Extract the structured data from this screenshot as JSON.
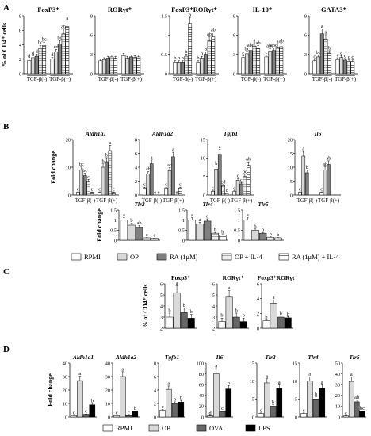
{
  "panel_labels": {
    "A": "A",
    "B": "B",
    "C": "C",
    "D": "D"
  },
  "colors": {
    "RPMI": "#ffffff",
    "OP": "#d9d9d9",
    "RA": "#7f7f7f",
    "OP_IL4": "#ffffff",
    "RA_IL4": "#ffffff",
    "OVA": "#666666",
    "LPS": "#000000"
  },
  "legend1": [
    "RPMI",
    "OP",
    "RA (1μM)",
    "OP + IL-4",
    "RA (1μM) + IL-4"
  ],
  "legend2": [
    "RPMI",
    "OP",
    "OVA",
    "LPS"
  ],
  "chart_data": [
    {
      "id": "A1",
      "type": "bar",
      "title": "FoxP3⁺",
      "ylabel": "% of CD4⁺ cells",
      "ylim": [
        0,
        8
      ],
      "yticks": [
        0,
        2,
        4,
        6,
        8
      ],
      "groups": [
        "TGF-β(-)",
        "TGF-β(+)"
      ],
      "series": [
        "RPMI",
        "OP",
        "RA",
        "OP_IL4",
        "RA_IL4"
      ],
      "values": [
        [
          1.8,
          2.2,
          2.4,
          3.5,
          3.9
        ],
        [
          2.0,
          3.0,
          4.1,
          5.5,
          6.5
        ]
      ],
      "letters": [
        [
          "d",
          "d",
          "d",
          "bc",
          "bc"
        ],
        [
          "d",
          "cd",
          "bc",
          "ab",
          "a"
        ]
      ]
    },
    {
      "id": "A2",
      "type": "bar",
      "title": "RORγt⁺",
      "ylim": [
        0,
        9
      ],
      "yticks": [
        0,
        3,
        6,
        9
      ],
      "groups": [
        "TGF-β(-)",
        "TGF-β(+)"
      ],
      "series": [
        "RPMI",
        "OP",
        "RA",
        "OP_IL4",
        "RA_IL4"
      ],
      "values": [
        [
          2.0,
          2.2,
          2.4,
          2.6,
          2.4
        ],
        [
          2.8,
          2.4,
          2.6,
          2.5,
          2.6
        ]
      ],
      "letters": [
        [
          "",
          "",
          "",
          "",
          ""
        ],
        [
          "",
          "",
          "",
          "",
          ""
        ]
      ]
    },
    {
      "id": "A3",
      "type": "bar",
      "title": "FoxP3⁺RORγt⁺",
      "ylim": [
        0,
        1.5
      ],
      "yticks": [
        0,
        0.5,
        1.0,
        1.5
      ],
      "groups": [
        "TGF-β(-)",
        "TGF-β(+)"
      ],
      "series": [
        "RPMI",
        "OP",
        "RA",
        "OP_IL4",
        "RA_IL4"
      ],
      "values": [
        [
          0.3,
          0.3,
          0.3,
          0.45,
          1.3
        ],
        [
          0.3,
          0.4,
          0.5,
          0.85,
          0.95
        ]
      ],
      "letters": [
        [
          "b",
          "b",
          "b",
          "b",
          "a"
        ],
        [
          "b",
          "b",
          "b",
          "ab",
          "ab"
        ]
      ]
    },
    {
      "id": "A4",
      "type": "bar",
      "title": "IL-10⁺",
      "ylim": [
        0,
        9
      ],
      "yticks": [
        0,
        3,
        6,
        9
      ],
      "groups": [
        "TGF-β(-)",
        "TGF-β(+)"
      ],
      "series": [
        "RPMI",
        "OP",
        "RA",
        "OP_IL4",
        "RA_IL4"
      ],
      "values": [
        [
          2.5,
          3.1,
          3.6,
          4.3,
          3.9
        ],
        [
          2.6,
          3.5,
          3.6,
          4.1,
          4.2
        ]
      ],
      "letters": [
        [
          "c",
          "bc",
          "abc",
          "a",
          "ab"
        ],
        [
          "c",
          "abc",
          "abc",
          "a",
          "ab"
        ]
      ]
    },
    {
      "id": "A5",
      "type": "bar",
      "title": "GATA3⁺",
      "ylim": [
        0,
        9
      ],
      "yticks": [
        0,
        3,
        6,
        9
      ],
      "groups": [
        "TGF-β(-)",
        "TGF-β(+)"
      ],
      "series": [
        "RPMI",
        "OP",
        "RA",
        "OP_IL4",
        "RA_IL4"
      ],
      "values": [
        [
          2.0,
          2.6,
          6.2,
          5.4,
          3.2
        ],
        [
          2.2,
          2.5,
          2.1,
          1.9,
          1.9
        ]
      ],
      "letters": [
        [
          "c",
          "bc",
          "a",
          "a",
          "b"
        ],
        [
          "c",
          "c",
          "c",
          "c",
          "c"
        ]
      ]
    },
    {
      "id": "B1",
      "type": "bar",
      "title": "Aldh1a1",
      "ylabel": "Fold change",
      "ylim": [
        0,
        20
      ],
      "yticks": [
        0,
        10,
        20
      ],
      "groups": [
        "TGF-β(-)",
        "TGF-β(+)"
      ],
      "series": [
        "RPMI",
        "OP",
        "RA",
        "OP_IL4",
        "RA_IL4"
      ],
      "values": [
        [
          1,
          9,
          7,
          5,
          1
        ],
        [
          1,
          10,
          12,
          16,
          1
        ]
      ],
      "letters": [
        [
          "c",
          "bc",
          "bc",
          "c",
          "c"
        ],
        [
          "c",
          "b",
          "b",
          "a",
          "c"
        ]
      ]
    },
    {
      "id": "B2",
      "type": "bar",
      "title": "Aldh1a2",
      "ylim": [
        0,
        8
      ],
      "yticks": [
        0,
        2,
        4,
        6,
        8
      ],
      "groups": [
        "TGF-β(-)",
        "TGF-β(+)"
      ],
      "series": [
        "RPMI",
        "OP",
        "RA",
        "OP_IL4",
        "RA_IL4"
      ],
      "values": [
        [
          1,
          3,
          4.5,
          0,
          0
        ],
        [
          1,
          3.5,
          5.5,
          0,
          1
        ]
      ],
      "letters": [
        [
          "c",
          "ab",
          "a",
          "e",
          "e"
        ],
        [
          "c",
          "ab",
          "a",
          "e",
          "c"
        ]
      ]
    },
    {
      "id": "B3",
      "type": "bar",
      "title": "Tgfb1",
      "ylim": [
        0,
        15
      ],
      "yticks": [
        0,
        5,
        10,
        15
      ],
      "groups": [
        "TGF-β(-)",
        "TGF-β(+)"
      ],
      "series": [
        "RPMI",
        "OP",
        "RA",
        "OP_IL4",
        "RA_IL4"
      ],
      "values": [
        [
          1,
          7,
          11,
          2.5,
          0.5
        ],
        [
          1,
          4,
          3,
          5,
          8
        ]
      ],
      "letters": [
        [
          "c",
          "b",
          "a",
          "cd",
          "c"
        ],
        [
          "c",
          "c",
          "c",
          "bc",
          "ab"
        ]
      ]
    },
    {
      "id": "B4",
      "type": "bar",
      "title": "Il6",
      "ylim": [
        0,
        20
      ],
      "yticks": [
        0,
        5,
        10,
        15,
        20
      ],
      "groups": [
        "TGF-β(-)",
        "TGF-β(+)"
      ],
      "series": [
        "RPMI",
        "OP",
        "RA",
        "OP_IL4",
        "RA_IL4"
      ],
      "values": [
        [
          1,
          14,
          8,
          0,
          0
        ],
        [
          1,
          9,
          11,
          0,
          0
        ]
      ],
      "letters": [
        [
          "c",
          "a",
          "b",
          "",
          ""
        ],
        [
          "c",
          "ab",
          "ab",
          "",
          ""
        ]
      ]
    },
    {
      "id": "B5",
      "type": "bar",
      "title": "Tlr2",
      "ylabel": "Fold change",
      "ylim": [
        0,
        1.5
      ],
      "yticks": [
        0,
        0.5,
        1.0,
        1.5
      ],
      "series": [
        "RPMI",
        "OP",
        "RA",
        "OP_IL4",
        "RA_IL4"
      ],
      "values": [
        1.0,
        0.75,
        0.65,
        0.12,
        0.1
      ],
      "letters": [
        "a",
        "b",
        "ab",
        "c",
        "c"
      ]
    },
    {
      "id": "B6",
      "type": "bar",
      "title": "Tlr4",
      "ylim": [
        0,
        1.5
      ],
      "yticks": [
        0,
        0.5,
        1.0,
        1.5
      ],
      "series": [
        "RPMI",
        "OP",
        "RA",
        "OP_IL4",
        "RA_IL4"
      ],
      "values": [
        1.0,
        0.8,
        0.95,
        0.35,
        0.25
      ],
      "letters": [
        "a",
        "a",
        "a",
        "b",
        "b"
      ]
    },
    {
      "id": "B7",
      "type": "bar",
      "title": "Tlr5",
      "ylim": [
        0,
        1.5
      ],
      "yticks": [
        0,
        0.5,
        1.0,
        1.5
      ],
      "series": [
        "RPMI",
        "OP",
        "RA",
        "OP_IL4",
        "RA_IL4"
      ],
      "values": [
        1.0,
        0.5,
        0.35,
        0.15,
        0.12
      ],
      "letters": [
        "a",
        "b",
        "b",
        "b",
        "b"
      ]
    },
    {
      "id": "C1",
      "type": "bar",
      "title": "Foxp3⁺",
      "ylabel": "% of CD4⁺ cells",
      "ylim": [
        2,
        6
      ],
      "yticks": [
        2,
        3,
        4,
        5,
        6
      ],
      "series": [
        "RPMI",
        "OP",
        "OVA",
        "LPS"
      ],
      "values": [
        3.0,
        5.2,
        3.4,
        2.9
      ],
      "letters": [
        "b",
        "a",
        "b",
        "b"
      ]
    },
    {
      "id": "C2",
      "type": "bar",
      "title": "RORγt⁺",
      "ylim": [
        2,
        6
      ],
      "yticks": [
        2,
        3,
        4,
        5,
        6
      ],
      "series": [
        "RPMI",
        "OP",
        "OVA",
        "LPS"
      ],
      "values": [
        2.6,
        4.8,
        3.0,
        2.6
      ],
      "letters": [
        "b",
        "a",
        "b",
        "b"
      ]
    },
    {
      "id": "C3",
      "type": "bar",
      "title": "Foxp3⁺RORγt⁺",
      "ylim": [
        0,
        6
      ],
      "yticks": [
        0,
        2,
        4,
        6
      ],
      "series": [
        "RPMI",
        "OP",
        "OVA",
        "LPS"
      ],
      "values": [
        1.0,
        3.4,
        1.5,
        1.4
      ],
      "letters": [
        "b",
        "a",
        "b",
        "b"
      ]
    },
    {
      "id": "D1",
      "type": "bar",
      "title": "Aldh1a1",
      "ylabel": "Fold change",
      "ylim": [
        0,
        40
      ],
      "yticks": [
        0,
        10,
        20,
        30,
        40
      ],
      "series": [
        "RPMI",
        "OP",
        "OVA",
        "LPS"
      ],
      "values": [
        1,
        27,
        2,
        9
      ],
      "letters": [
        "c",
        "a",
        "c",
        "b"
      ]
    },
    {
      "id": "D2",
      "type": "bar",
      "title": "Aldh1a2",
      "ylim": [
        0,
        40
      ],
      "yticks": [
        0,
        10,
        20,
        30,
        40
      ],
      "series": [
        "RPMI",
        "OP",
        "OVA",
        "LPS"
      ],
      "values": [
        1,
        30,
        1,
        4
      ],
      "letters": [
        "c",
        "a",
        "c",
        "b"
      ]
    },
    {
      "id": "D3",
      "type": "bar",
      "title": "Tgfb1",
      "ylim": [
        0,
        8
      ],
      "yticks": [
        0,
        2,
        4,
        6,
        8
      ],
      "series": [
        "RPMI",
        "OP",
        "OVA",
        "LPS"
      ],
      "values": [
        1,
        4.1,
        2,
        2.2
      ],
      "letters": [
        "c",
        "a",
        "b",
        "b"
      ]
    },
    {
      "id": "D4",
      "type": "bar",
      "title": "Il6",
      "ylim": [
        0,
        100
      ],
      "yticks": [
        0,
        20,
        40,
        60,
        80,
        100
      ],
      "series": [
        "RPMI",
        "OP",
        "OVA",
        "LPS"
      ],
      "values": [
        2,
        80,
        10,
        52
      ],
      "letters": [
        "d",
        "a",
        "c",
        "b"
      ]
    },
    {
      "id": "D5",
      "type": "bar",
      "title": "Tlr2",
      "ylim": [
        0,
        15
      ],
      "yticks": [
        0,
        5,
        10,
        15
      ],
      "series": [
        "RPMI",
        "OP",
        "OVA",
        "LPS"
      ],
      "values": [
        1,
        9.5,
        3,
        8
      ],
      "letters": [
        "c",
        "a",
        "b",
        "a"
      ]
    },
    {
      "id": "D6",
      "type": "bar",
      "title": "Tlr4",
      "ylim": [
        0,
        15
      ],
      "yticks": [
        0,
        5,
        10,
        15
      ],
      "series": [
        "RPMI",
        "OP",
        "OVA",
        "LPS"
      ],
      "values": [
        1,
        10,
        5,
        8
      ],
      "letters": [
        "c",
        "a",
        "b",
        "a"
      ]
    },
    {
      "id": "D7",
      "type": "bar",
      "title": "Tlr5",
      "ylim": [
        0,
        50
      ],
      "yticks": [
        0,
        10,
        20,
        30,
        40,
        50
      ],
      "series": [
        "RPMI",
        "OP",
        "OVA",
        "LPS"
      ],
      "values": [
        1,
        33,
        14,
        5
      ],
      "letters": [
        "c",
        "a",
        "ab",
        "bc"
      ]
    }
  ]
}
